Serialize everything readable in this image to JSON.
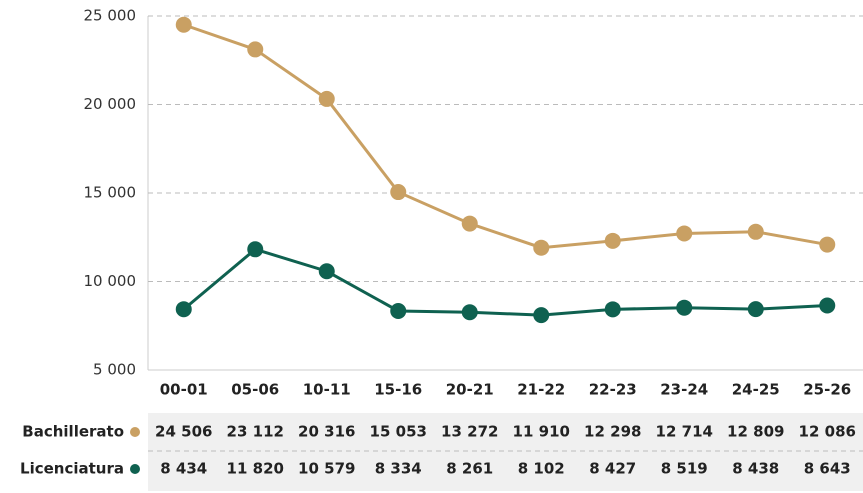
{
  "chart_data": {
    "type": "line",
    "categories": [
      "00-01",
      "05-06",
      "10-11",
      "15-16",
      "20-21",
      "21-22",
      "22-23",
      "23-24",
      "24-25",
      "25-26"
    ],
    "series": [
      {
        "name": "Bachillerato",
        "color": "#c9a063",
        "values": [
          24506,
          23112,
          20316,
          15053,
          13272,
          11910,
          12298,
          12714,
          12809,
          12086
        ],
        "value_labels": [
          "24 506",
          "23 112",
          "20 316",
          "15 053",
          "13 272",
          "11 910",
          "12 298",
          "12 714",
          "12 809",
          "12 086"
        ]
      },
      {
        "name": "Licenciatura",
        "color": "#0f6150",
        "values": [
          8434,
          11820,
          10579,
          8334,
          8261,
          8102,
          8427,
          8519,
          8438,
          8643
        ],
        "value_labels": [
          "8 434",
          "11 820",
          "10 579",
          "8 334",
          "8 261",
          "8 102",
          "8 427",
          "8 519",
          "8 438",
          "8 643"
        ]
      }
    ],
    "ylim": [
      5000,
      25000
    ],
    "yticks": [
      {
        "value": 5000,
        "label": "5 000"
      },
      {
        "value": 10000,
        "label": "10 000"
      },
      {
        "value": 15000,
        "label": "15 000"
      },
      {
        "value": 20000,
        "label": "20 000"
      },
      {
        "value": 25000,
        "label": "25 000"
      }
    ],
    "grid": true
  }
}
